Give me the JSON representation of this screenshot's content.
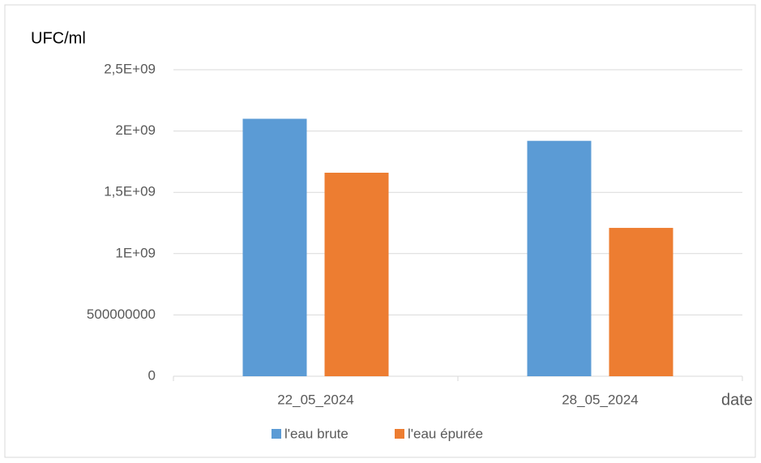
{
  "chart_data": {
    "type": "bar",
    "y_label": "UFC/ml",
    "x_label": "date",
    "categories": [
      "22_05_2024",
      "28_05_2024"
    ],
    "series": [
      {
        "name": "l'eau brute",
        "color": "#5b9bd5",
        "values": [
          2100000000,
          1920000000
        ]
      },
      {
        "name": "l'eau épurée",
        "color": "#ed7d31",
        "values": [
          1660000000,
          1210000000
        ]
      }
    ],
    "ylim": [
      0,
      2500000000
    ],
    "yticks": [
      0,
      500000000,
      {
        "value": 1000000000,
        "label": "1E+09"
      },
      {
        "value": 1500000000,
        "label": "1,5E+09"
      },
      {
        "value": 2000000000,
        "label": "2E+09"
      },
      {
        "value": 2500000000,
        "label": "2,5E+09"
      }
    ],
    "grid": true,
    "legend": "bottom"
  }
}
